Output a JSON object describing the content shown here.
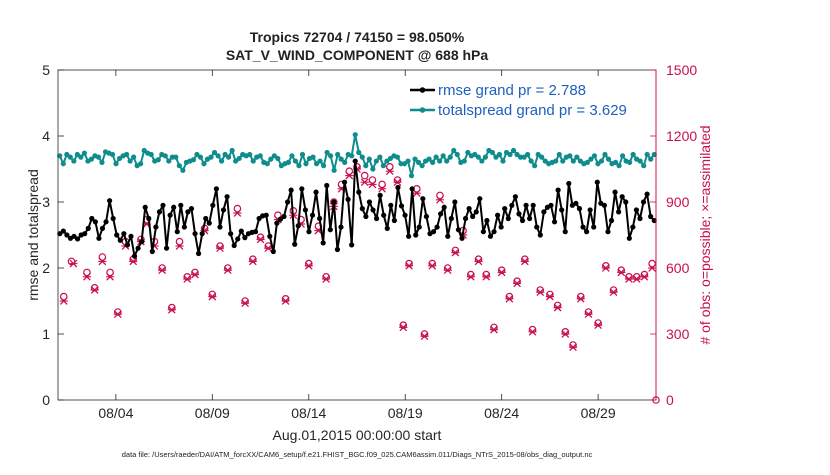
{
  "chart_data": {
    "type": "line",
    "title_line1": "Tropics 72704 / 74150 = 98.050%",
    "title_line2": "SAT_V_WIND_COMPONENT @ 688 hPa",
    "xlabel": "Aug.01,2015 00:00:00 start",
    "ylabel_left": "rmse and totalspread",
    "ylabel_right": "# of obs: o=possible; ×=assimilated",
    "footer": "data file: /Users/raeder/DAI/ATM_forcXX/CAM6_setup/f.e21.FHIST_BGC.f09_025.CAM6assim.011/Diags_NTrS_2015-08/obs_diag_output.nc",
    "xlim": [
      1,
      32
    ],
    "ylim_left": [
      0,
      5
    ],
    "ylim_right": [
      0,
      1500
    ],
    "x_ticks": [
      4,
      9,
      14,
      19,
      24,
      29
    ],
    "x_tick_labels": [
      "08/04",
      "08/09",
      "08/14",
      "08/19",
      "08/24",
      "08/29"
    ],
    "y_ticks_left": [
      0,
      1,
      2,
      3,
      4,
      5
    ],
    "y_tick_labels_left": [
      "0",
      "1",
      "2",
      "3",
      "4",
      "5"
    ],
    "y_ticks_right": [
      0,
      300,
      600,
      900,
      1200,
      1500
    ],
    "y_tick_labels_right": [
      "0",
      "300",
      "600",
      "900",
      "1200",
      "1500"
    ],
    "legend_position": "top-right",
    "colors": {
      "rmse": "#000000",
      "spread": "#0f8c8c",
      "obs": "#c8104f",
      "legend_text": "#1f5fbf",
      "right_axis": "#c8104f"
    },
    "series": [
      {
        "name": "rmse",
        "legend_label": "rmse grand pr = 2.788",
        "values": [
          2.52,
          2.56,
          2.5,
          2.45,
          2.48,
          2.44,
          2.5,
          2.52,
          2.6,
          2.75,
          2.7,
          2.45,
          2.6,
          2.7,
          3.02,
          2.75,
          2.5,
          2.42,
          2.52,
          2.35,
          2.48,
          2.18,
          2.3,
          2.4,
          2.92,
          2.75,
          2.25,
          2.62,
          2.85,
          2.95,
          2.3,
          2.8,
          2.92,
          2.55,
          2.95,
          2.62,
          2.85,
          2.9,
          2.52,
          2.22,
          2.52,
          2.75,
          2.68,
          2.95,
          3.2,
          2.62,
          2.88,
          3.08,
          2.52,
          2.34,
          2.44,
          2.56,
          2.46,
          2.52,
          2.54,
          2.55,
          2.75,
          2.79,
          2.8,
          2.48,
          2.25,
          2.68,
          2.74,
          2.78,
          3.0,
          3.18,
          2.36,
          2.64,
          3.2,
          2.88,
          2.55,
          2.8,
          3.15,
          2.75,
          2.38,
          3.25,
          2.58,
          3.0,
          2.28,
          2.62,
          3.3,
          3.04,
          2.35,
          3.62,
          3.15,
          2.9,
          2.78,
          3.0,
          2.88,
          2.75,
          3.1,
          2.8,
          2.6,
          2.95,
          2.72,
          3.22,
          2.94,
          2.8,
          2.48,
          3.2,
          2.5,
          2.62,
          3.05,
          2.78,
          2.52,
          2.55,
          2.62,
          2.82,
          2.92,
          2.48,
          2.75,
          3.0,
          2.58,
          2.45,
          2.75,
          2.9,
          2.78,
          2.85,
          3.05,
          2.55,
          2.72,
          2.48,
          2.55,
          2.8,
          2.62,
          2.9,
          2.75,
          2.95,
          3.08,
          2.82,
          2.72,
          2.95,
          2.75,
          2.95,
          2.62,
          2.5,
          2.85,
          2.92,
          2.95,
          2.7,
          3.18,
          2.88,
          2.55,
          3.28,
          2.95,
          2.98,
          2.9,
          2.62,
          2.55,
          2.88,
          2.62,
          3.3,
          2.98,
          2.95,
          2.55,
          2.72,
          3.15,
          2.85,
          3.08,
          3.0,
          2.45,
          2.62,
          2.88,
          2.75,
          3.0,
          3.12,
          2.78,
          2.72
        ]
      },
      {
        "name": "totalspread",
        "legend_label": "totalspread grand pr = 3.629",
        "values": [
          3.7,
          3.58,
          3.72,
          3.68,
          3.62,
          3.72,
          3.68,
          3.74,
          3.62,
          3.65,
          3.7,
          3.68,
          3.6,
          3.76,
          3.74,
          3.72,
          3.58,
          3.66,
          3.7,
          3.72,
          3.62,
          3.68,
          3.55,
          3.58,
          3.78,
          3.74,
          3.72,
          3.62,
          3.64,
          3.72,
          3.7,
          3.62,
          3.68,
          3.68,
          3.55,
          3.48,
          3.6,
          3.62,
          3.64,
          3.72,
          3.68,
          3.58,
          3.65,
          3.68,
          3.75,
          3.7,
          3.62,
          3.72,
          3.68,
          3.78,
          3.62,
          3.66,
          3.72,
          3.7,
          3.72,
          3.62,
          3.68,
          3.7,
          3.6,
          3.58,
          3.65,
          3.7,
          3.66,
          3.55,
          3.58,
          3.6,
          3.7,
          3.62,
          3.55,
          3.72,
          3.58,
          3.66,
          3.68,
          3.58,
          3.62,
          3.55,
          3.75,
          3.7,
          3.48,
          3.72,
          3.65,
          3.6,
          3.72,
          3.7,
          4.02,
          3.75,
          3.68,
          3.55,
          3.65,
          3.5,
          3.62,
          3.68,
          3.55,
          3.62,
          3.66,
          3.7,
          3.68,
          3.58,
          3.58,
          3.62,
          3.4,
          3.65,
          3.6,
          3.55,
          3.62,
          3.65,
          3.6,
          3.68,
          3.62,
          3.7,
          3.62,
          3.68,
          3.78,
          3.72,
          3.6,
          3.62,
          3.75,
          3.7,
          3.72,
          3.68,
          3.62,
          3.68,
          3.78,
          3.75,
          3.68,
          3.72,
          3.62,
          3.75,
          3.72,
          3.78,
          3.72,
          3.68,
          3.68,
          3.72,
          3.62,
          3.55,
          3.72,
          3.68,
          3.62,
          3.58,
          3.6,
          3.62,
          3.72,
          3.62,
          3.68,
          3.7,
          3.62,
          3.68,
          3.62,
          3.58,
          3.6,
          3.65,
          3.7,
          3.58,
          3.62,
          3.72,
          3.65,
          3.58,
          3.6,
          3.55,
          3.7,
          3.62,
          3.6,
          3.72,
          3.65,
          3.62,
          3.55,
          3.72,
          3.65,
          3.72
        ]
      }
    ],
    "obs_possible": [
      [
        1.3,
        470
      ],
      [
        1.7,
        630
      ],
      [
        2.5,
        580
      ],
      [
        2.9,
        510
      ],
      [
        3.3,
        650
      ],
      [
        3.7,
        580
      ],
      [
        4.1,
        400
      ],
      [
        4.5,
        720
      ],
      [
        4.9,
        640
      ],
      [
        5.3,
        730
      ],
      [
        5.6,
        820
      ],
      [
        6.0,
        720
      ],
      [
        6.4,
        600
      ],
      [
        6.9,
        420
      ],
      [
        7.3,
        720
      ],
      [
        7.7,
        560
      ],
      [
        8.1,
        580
      ],
      [
        8.6,
        780
      ],
      [
        9.0,
        480
      ],
      [
        9.4,
        700
      ],
      [
        9.8,
        600
      ],
      [
        10.3,
        870
      ],
      [
        10.7,
        450
      ],
      [
        11.1,
        640
      ],
      [
        11.5,
        740
      ],
      [
        11.9,
        700
      ],
      [
        12.4,
        840
      ],
      [
        12.8,
        460
      ],
      [
        13.2,
        860
      ],
      [
        13.6,
        820
      ],
      [
        14.0,
        620
      ],
      [
        14.5,
        790
      ],
      [
        14.9,
        560
      ],
      [
        15.3,
        900
      ],
      [
        15.7,
        980
      ],
      [
        16.1,
        1040
      ],
      [
        16.5,
        1060
      ],
      [
        16.9,
        1020
      ],
      [
        17.3,
        1000
      ],
      [
        17.8,
        980
      ],
      [
        18.2,
        1060
      ],
      [
        18.6,
        1000
      ],
      [
        18.9,
        340
      ],
      [
        19.2,
        620
      ],
      [
        19.6,
        960
      ],
      [
        20.0,
        300
      ],
      [
        20.4,
        620
      ],
      [
        20.8,
        930
      ],
      [
        21.2,
        600
      ],
      [
        21.6,
        680
      ],
      [
        22.0,
        770
      ],
      [
        22.4,
        570
      ],
      [
        22.8,
        640
      ],
      [
        23.2,
        570
      ],
      [
        23.6,
        330
      ],
      [
        24.0,
        590
      ],
      [
        24.4,
        470
      ],
      [
        24.8,
        540
      ],
      [
        25.2,
        640
      ],
      [
        25.6,
        320
      ],
      [
        26.0,
        500
      ],
      [
        26.5,
        480
      ],
      [
        26.9,
        430
      ],
      [
        27.3,
        310
      ],
      [
        27.7,
        250
      ],
      [
        28.1,
        470
      ],
      [
        28.5,
        400
      ],
      [
        29.0,
        350
      ],
      [
        29.4,
        610
      ],
      [
        29.8,
        500
      ],
      [
        30.2,
        590
      ],
      [
        30.6,
        560
      ],
      [
        31.0,
        560
      ],
      [
        31.4,
        570
      ],
      [
        31.8,
        620
      ]
    ],
    "obs_assimilated": [
      [
        1.3,
        450
      ],
      [
        1.8,
        620
      ],
      [
        2.5,
        560
      ],
      [
        2.9,
        500
      ],
      [
        3.3,
        630
      ],
      [
        3.7,
        560
      ],
      [
        4.1,
        390
      ],
      [
        4.5,
        700
      ],
      [
        4.9,
        630
      ],
      [
        5.3,
        720
      ],
      [
        5.6,
        800
      ],
      [
        6.0,
        700
      ],
      [
        6.4,
        590
      ],
      [
        6.9,
        410
      ],
      [
        7.3,
        700
      ],
      [
        7.7,
        550
      ],
      [
        8.1,
        570
      ],
      [
        8.6,
        770
      ],
      [
        9.0,
        470
      ],
      [
        9.4,
        690
      ],
      [
        9.8,
        590
      ],
      [
        10.3,
        850
      ],
      [
        10.7,
        440
      ],
      [
        11.1,
        630
      ],
      [
        11.5,
        730
      ],
      [
        11.9,
        690
      ],
      [
        12.4,
        820
      ],
      [
        12.8,
        450
      ],
      [
        13.2,
        840
      ],
      [
        13.6,
        800
      ],
      [
        14.0,
        610
      ],
      [
        14.5,
        770
      ],
      [
        14.9,
        550
      ],
      [
        15.3,
        880
      ],
      [
        15.7,
        960
      ],
      [
        16.1,
        1020
      ],
      [
        16.5,
        1050
      ],
      [
        16.9,
        990
      ],
      [
        17.3,
        980
      ],
      [
        17.8,
        960
      ],
      [
        18.2,
        1040
      ],
      [
        18.6,
        990
      ],
      [
        18.9,
        330
      ],
      [
        19.2,
        610
      ],
      [
        19.6,
        940
      ],
      [
        20.0,
        290
      ],
      [
        20.4,
        610
      ],
      [
        20.8,
        910
      ],
      [
        21.2,
        590
      ],
      [
        21.6,
        670
      ],
      [
        22.0,
        750
      ],
      [
        22.4,
        560
      ],
      [
        22.8,
        630
      ],
      [
        23.2,
        560
      ],
      [
        23.6,
        320
      ],
      [
        24.0,
        580
      ],
      [
        24.4,
        460
      ],
      [
        24.8,
        530
      ],
      [
        25.2,
        630
      ],
      [
        25.6,
        310
      ],
      [
        26.0,
        490
      ],
      [
        26.5,
        470
      ],
      [
        26.9,
        420
      ],
      [
        27.3,
        300
      ],
      [
        27.7,
        240
      ],
      [
        28.1,
        460
      ],
      [
        28.5,
        390
      ],
      [
        29.0,
        340
      ],
      [
        29.4,
        600
      ],
      [
        29.8,
        490
      ],
      [
        30.2,
        580
      ],
      [
        30.6,
        550
      ],
      [
        31.0,
        550
      ],
      [
        31.4,
        560
      ],
      [
        31.8,
        600
      ]
    ],
    "last_point": {
      "x": 32,
      "y": 0
    }
  }
}
